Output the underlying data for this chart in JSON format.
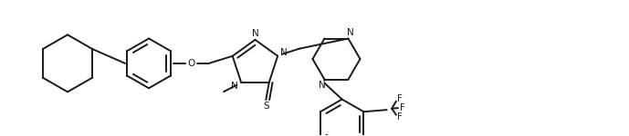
{
  "background_color": "#ffffff",
  "line_color": "#1a1a1a",
  "line_width": 1.4,
  "figsize": [
    6.89,
    1.5
  ],
  "dpi": 100,
  "xlim": [
    0.0,
    10.0
  ],
  "ylim": [
    0.0,
    2.15
  ]
}
